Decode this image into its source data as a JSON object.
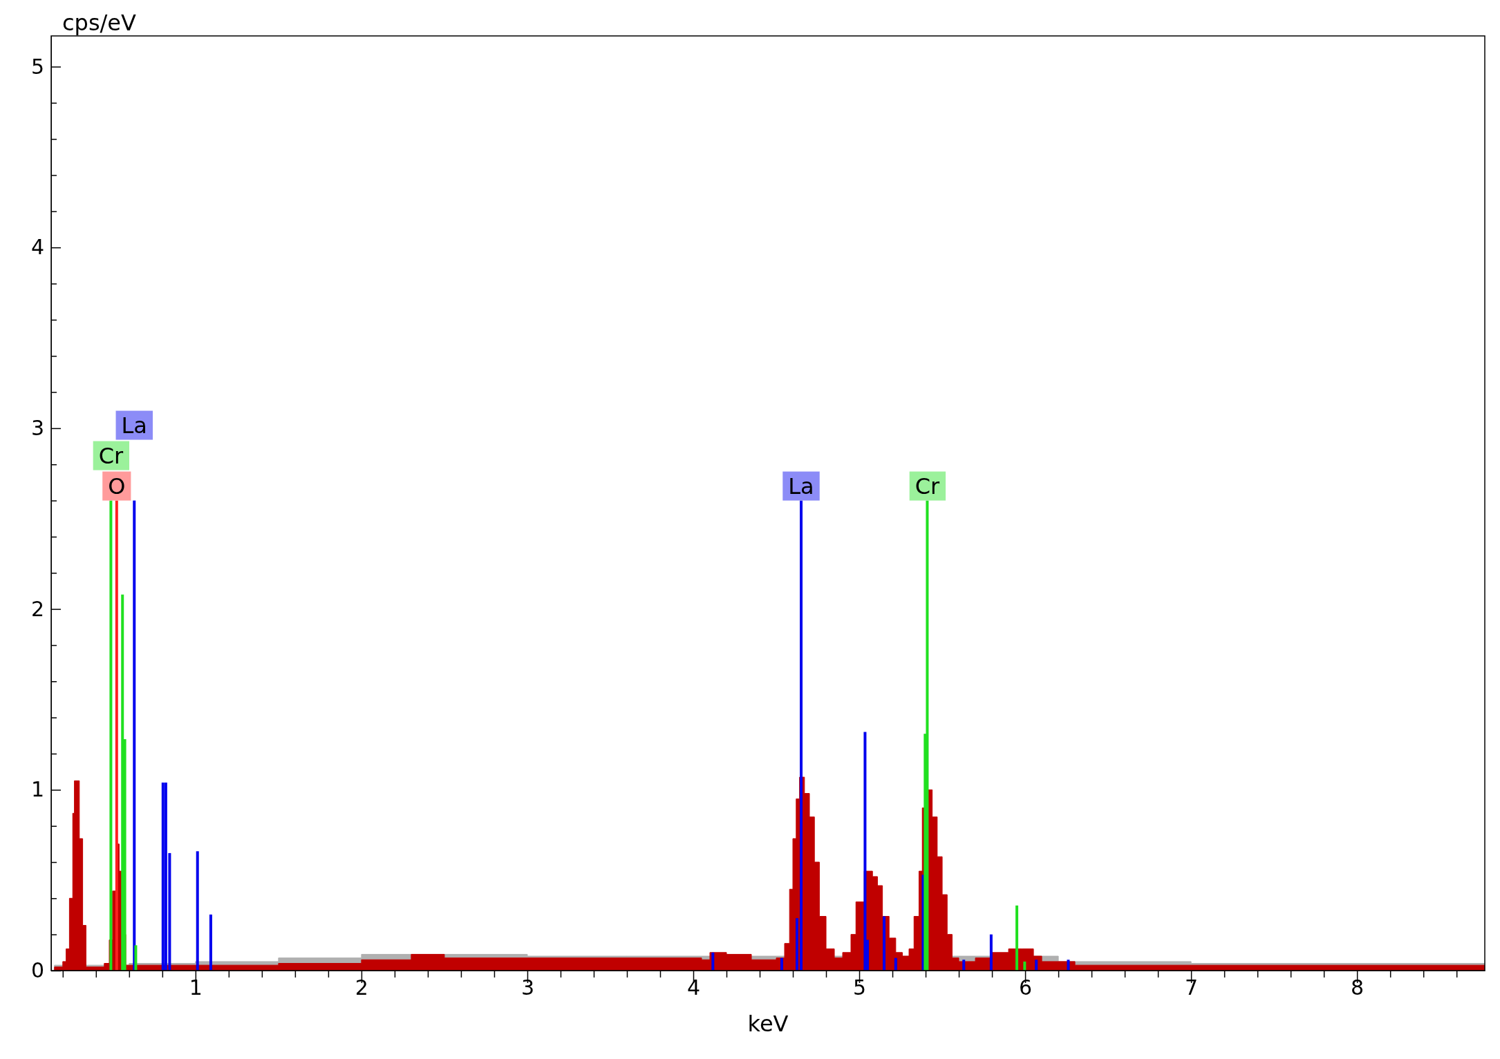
{
  "chart_data": {
    "type": "area",
    "xlabel": "keV",
    "ylabel": "cps/eV",
    "xlim": [
      0.13,
      8.77
    ],
    "ylim": [
      0,
      5.17
    ],
    "xticks": [
      {
        "value": 0.2,
        "label": null
      },
      {
        "value": 0.4,
        "label": null
      },
      {
        "value": 0.6,
        "label": null
      },
      {
        "value": 0.8,
        "label": null
      },
      1,
      {
        "value": 1.2,
        "label": null
      },
      {
        "value": 1.4,
        "label": null
      },
      {
        "value": 1.6,
        "label": null
      },
      {
        "value": 1.8,
        "label": null
      },
      2,
      {
        "value": 2.2,
        "label": null
      },
      {
        "value": 2.4,
        "label": null
      },
      {
        "value": 2.6,
        "label": null
      },
      {
        "value": 2.8,
        "label": null
      },
      3,
      {
        "value": 3.2,
        "label": null
      },
      {
        "value": 3.4,
        "label": null
      },
      {
        "value": 3.6,
        "label": null
      },
      {
        "value": 3.8,
        "label": null
      },
      4,
      {
        "value": 4.2,
        "label": null
      },
      {
        "value": 4.4,
        "label": null
      },
      {
        "value": 4.6,
        "label": null
      },
      {
        "value": 4.8,
        "label": null
      },
      5,
      {
        "value": 5.2,
        "label": null
      },
      {
        "value": 5.4,
        "label": null
      },
      {
        "value": 5.6,
        "label": null
      },
      {
        "value": 5.8,
        "label": null
      },
      6,
      {
        "value": 6.2,
        "label": null
      },
      {
        "value": 6.4,
        "label": null
      },
      {
        "value": 6.6,
        "label": null
      },
      {
        "value": 6.8,
        "label": null
      },
      7,
      {
        "value": 7.2,
        "label": null
      },
      {
        "value": 7.4,
        "label": null
      },
      {
        "value": 7.6,
        "label": null
      },
      {
        "value": 7.8,
        "label": null
      },
      8,
      {
        "value": 8.2,
        "label": null
      },
      {
        "value": 8.4,
        "label": null
      },
      {
        "value": 8.6,
        "label": null
      }
    ],
    "yticks": [
      0,
      {
        "value": 0.2,
        "label": null
      },
      {
        "value": 0.4,
        "label": null
      },
      {
        "value": 0.6,
        "label": null
      },
      {
        "value": 0.8,
        "label": null
      },
      1,
      {
        "value": 1.2,
        "label": null
      },
      {
        "value": 1.4,
        "label": null
      },
      {
        "value": 1.6,
        "label": null
      },
      {
        "value": 1.8,
        "label": null
      },
      2,
      {
        "value": 2.2,
        "label": null
      },
      {
        "value": 2.4,
        "label": null
      },
      {
        "value": 2.6,
        "label": null
      },
      {
        "value": 2.8,
        "label": null
      },
      3,
      {
        "value": 3.2,
        "label": null
      },
      {
        "value": 3.4,
        "label": null
      },
      {
        "value": 3.6,
        "label": null
      },
      {
        "value": 3.8,
        "label": null
      },
      4,
      {
        "value": 4.2,
        "label": null
      },
      {
        "value": 4.4,
        "label": null
      },
      {
        "value": 4.6,
        "label": null
      },
      {
        "value": 4.8,
        "label": null
      },
      5
    ],
    "series": [
      {
        "color": "#b0b0b0",
        "x": [
          0.15,
          0.35,
          0.6,
          1.0,
          1.5,
          2.0,
          2.5,
          3.0,
          3.6,
          6.2,
          7.0,
          8.77
        ],
        "values": [
          0.03,
          0.03,
          0.04,
          0.05,
          0.07,
          0.09,
          0.09,
          0.08,
          0.08,
          0.05,
          0.04,
          0.04
        ]
      },
      {
        "color": "#c00000",
        "x": [
          0.15,
          0.2,
          0.22,
          0.24,
          0.26,
          0.27,
          0.3,
          0.32,
          0.34,
          0.45,
          0.48,
          0.5,
          0.52,
          0.54,
          0.56,
          0.58,
          0.8,
          1.0,
          1.5,
          2.0,
          2.3,
          2.5,
          3.0,
          3.5,
          4.05,
          4.1,
          4.2,
          4.35,
          4.5,
          4.55,
          4.58,
          4.6,
          4.62,
          4.64,
          4.67,
          4.7,
          4.73,
          4.76,
          4.8,
          4.85,
          4.9,
          4.95,
          4.98,
          5.03,
          5.08,
          5.11,
          5.14,
          5.18,
          5.22,
          5.26,
          5.3,
          5.33,
          5.36,
          5.38,
          5.41,
          5.44,
          5.47,
          5.5,
          5.53,
          5.56,
          5.6,
          5.7,
          5.8,
          5.9,
          5.98,
          6.05,
          6.1,
          6.3,
          7.0,
          8.0,
          8.77
        ],
        "values": [
          0.02,
          0.05,
          0.12,
          0.4,
          0.87,
          1.05,
          0.73,
          0.25,
          0.02,
          0.04,
          0.17,
          0.44,
          0.7,
          0.55,
          0.2,
          0.03,
          0.03,
          0.03,
          0.04,
          0.06,
          0.09,
          0.07,
          0.07,
          0.07,
          0.06,
          0.1,
          0.09,
          0.06,
          0.07,
          0.15,
          0.45,
          0.73,
          0.95,
          1.07,
          0.98,
          0.85,
          0.6,
          0.3,
          0.12,
          0.07,
          0.1,
          0.2,
          0.38,
          0.55,
          0.52,
          0.47,
          0.3,
          0.18,
          0.1,
          0.08,
          0.12,
          0.3,
          0.55,
          0.9,
          1.0,
          0.85,
          0.63,
          0.42,
          0.2,
          0.07,
          0.05,
          0.07,
          0.1,
          0.12,
          0.12,
          0.08,
          0.05,
          0.03,
          0.03,
          0.03,
          0.02
        ]
      },
      {
        "type": "bar",
        "color": "#ff2020",
        "x": [
          0.525
        ],
        "values": [
          2.6
        ]
      },
      {
        "type": "bar",
        "color": "#0000ee",
        "x": [
          0.631,
          0.804,
          0.821,
          0.844,
          1.012,
          1.092,
          4.118,
          4.533,
          4.625,
          4.65,
          5.035,
          5.05,
          5.15,
          5.22,
          5.385,
          5.63,
          5.795,
          6.067,
          6.26
        ],
        "values": [
          2.6,
          1.04,
          1.04,
          0.65,
          0.66,
          0.31,
          0.1,
          0.07,
          0.29,
          2.6,
          1.32,
          0.17,
          0.3,
          0.07,
          0.53,
          0.06,
          0.2,
          0.06,
          0.06
        ]
      },
      {
        "type": "bar",
        "color": "#20e020",
        "x": [
          0.49,
          0.56,
          0.574,
          0.64,
          5.397,
          5.41,
          5.95,
          5.997
        ],
        "values": [
          2.6,
          2.08,
          1.28,
          0.14,
          1.31,
          2.6,
          0.36,
          0.05
        ]
      }
    ],
    "annotations": [
      {
        "text": "O",
        "x": 0.525,
        "y": 2.6
      },
      {
        "text": "Cr",
        "x": 0.49,
        "y": 2.6
      },
      {
        "text": "La",
        "x": 0.631,
        "y": 2.6
      },
      {
        "text": "La",
        "x": 4.65,
        "y": 2.6
      },
      {
        "text": "Cr",
        "x": 5.41,
        "y": 2.6
      }
    ]
  }
}
